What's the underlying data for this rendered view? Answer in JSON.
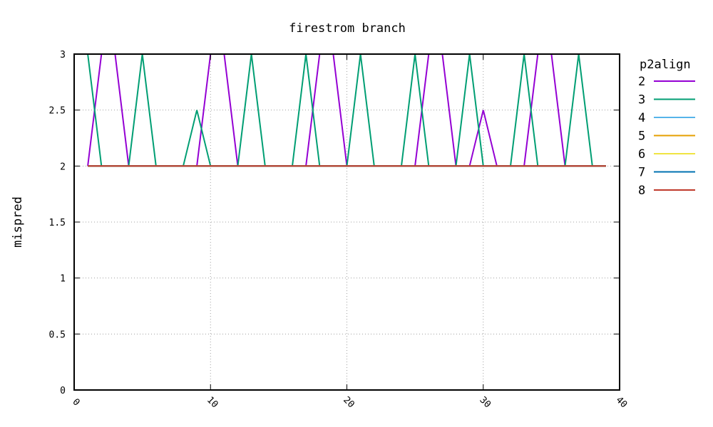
{
  "chart_data": {
    "type": "line",
    "title": "firestrom branch",
    "xlabel": "",
    "ylabel": "mispred",
    "xlim": [
      0,
      40
    ],
    "ylim": [
      0,
      3
    ],
    "x_ticks": [
      "0",
      "10",
      "20",
      "30",
      "40"
    ],
    "y_ticks": [
      "0",
      "0.5",
      "1",
      "1.5",
      "2",
      "2.5",
      "3"
    ],
    "grid": true,
    "legend": {
      "title": "p2align",
      "position": "right"
    },
    "x": [
      1,
      2,
      3,
      4,
      5,
      6,
      7,
      8,
      9,
      10,
      11,
      12,
      13,
      14,
      15,
      16,
      17,
      18,
      19,
      20,
      21,
      22,
      23,
      24,
      25,
      26,
      27,
      28,
      29,
      30,
      31,
      32,
      33,
      34,
      35,
      36,
      37,
      38,
      39
    ],
    "series": [
      {
        "name": "2",
        "color": "#9400d3",
        "values": [
          2,
          3,
          3,
          2,
          2,
          2,
          2,
          2,
          2,
          3,
          3,
          2,
          2,
          2,
          2,
          2,
          2,
          3,
          3,
          2,
          2,
          2,
          2,
          2,
          2,
          3,
          3,
          2,
          2,
          2.5,
          2,
          2,
          2,
          3,
          3,
          2,
          2,
          2,
          2
        ]
      },
      {
        "name": "3",
        "color": "#009e73",
        "values": [
          3,
          2,
          2,
          2,
          3,
          2,
          2,
          2,
          2.5,
          2,
          2,
          2,
          3,
          2,
          2,
          2,
          3,
          2,
          2,
          2,
          3,
          2,
          2,
          2,
          3,
          2,
          2,
          2,
          3,
          2,
          2,
          2,
          3,
          2,
          2,
          2,
          3,
          2,
          2
        ]
      },
      {
        "name": "4",
        "color": "#56b4e9",
        "values": [
          2,
          2,
          2,
          2,
          2,
          2,
          2,
          2,
          2,
          2,
          2,
          2,
          2,
          2,
          2,
          2,
          2,
          2,
          2,
          2,
          2,
          2,
          2,
          2,
          2,
          2,
          2,
          2,
          2,
          2,
          2,
          2,
          2,
          2,
          2,
          2,
          2,
          2,
          2
        ]
      },
      {
        "name": "5",
        "color": "#e69f00",
        "values": [
          2,
          2,
          2,
          2,
          2,
          2,
          2,
          2,
          2,
          2,
          2,
          2,
          2,
          2,
          2,
          2,
          2,
          2,
          2,
          2,
          2,
          2,
          2,
          2,
          2,
          2,
          2,
          2,
          2,
          2,
          2,
          2,
          2,
          2,
          2,
          2,
          2,
          2,
          2
        ]
      },
      {
        "name": "6",
        "color": "#f0e442",
        "values": [
          2,
          2,
          2,
          2,
          2,
          2,
          2,
          2,
          2,
          2,
          2,
          2,
          2,
          2,
          2,
          2,
          2,
          2,
          2,
          2,
          2,
          2,
          2,
          2,
          2,
          2,
          2,
          2,
          2,
          2,
          2,
          2,
          2,
          2,
          2,
          2,
          2,
          2,
          2
        ]
      },
      {
        "name": "7",
        "color": "#0072b2",
        "values": [
          2,
          2,
          2,
          2,
          2,
          2,
          2,
          2,
          2,
          2,
          2,
          2,
          2,
          2,
          2,
          2,
          2,
          2,
          2,
          2,
          2,
          2,
          2,
          2,
          2,
          2,
          2,
          2,
          2,
          2,
          2,
          2,
          2,
          2,
          2,
          2,
          2,
          2,
          2
        ]
      },
      {
        "name": "8",
        "color": "#c0392b",
        "values": [
          2,
          2,
          2,
          2,
          2,
          2,
          2,
          2,
          2,
          2,
          2,
          2,
          2,
          2,
          2,
          2,
          2,
          2,
          2,
          2,
          2,
          2,
          2,
          2,
          2,
          2,
          2,
          2,
          2,
          2,
          2,
          2,
          2,
          2,
          2,
          2,
          2,
          2,
          2
        ]
      }
    ]
  }
}
